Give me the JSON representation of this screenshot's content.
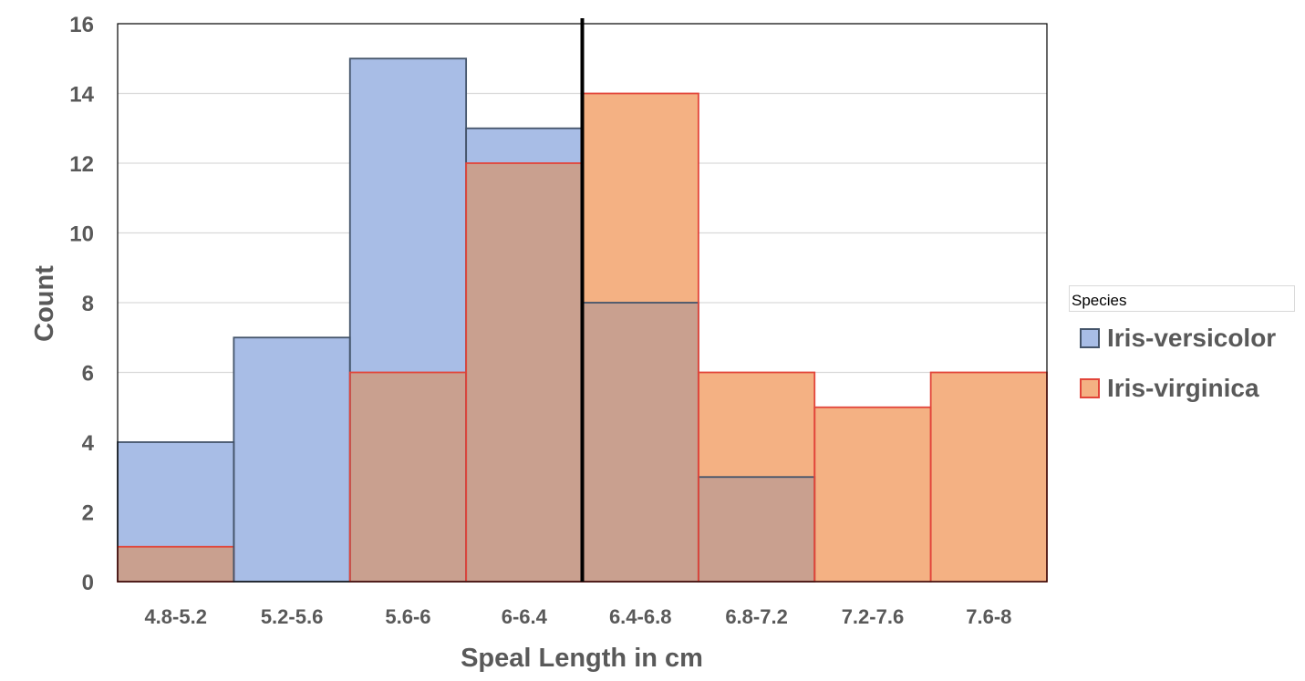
{
  "chart_data": {
    "type": "bar",
    "title": "",
    "xlabel": "Speal Length in cm",
    "ylabel": "Count",
    "ylim": [
      0,
      16
    ],
    "yticks": [
      0,
      2,
      4,
      6,
      8,
      10,
      12,
      14,
      16
    ],
    "grid": true,
    "categories": [
      "4.8-5.2",
      "5.2-5.6",
      "5.6-6",
      "6-6.4",
      "6.4-6.8",
      "6.8-7.2",
      "7.2-7.6",
      "7.6-8"
    ],
    "series": [
      {
        "name": "Iris-versicolor",
        "values": [
          4,
          7,
          15,
          13,
          8,
          3,
          0,
          0
        ],
        "fill": "#a8bde6",
        "stroke": "#44546a"
      },
      {
        "name": "Iris-virginica",
        "values": [
          1,
          0,
          6,
          12,
          14,
          6,
          5,
          6
        ],
        "fill": "#f4b183",
        "stroke": "#e2453a"
      }
    ],
    "overlap_fill": "#c9a08f",
    "legend": {
      "title": "Species",
      "position": "right"
    },
    "marker_line_at_boundary": "6.4"
  }
}
